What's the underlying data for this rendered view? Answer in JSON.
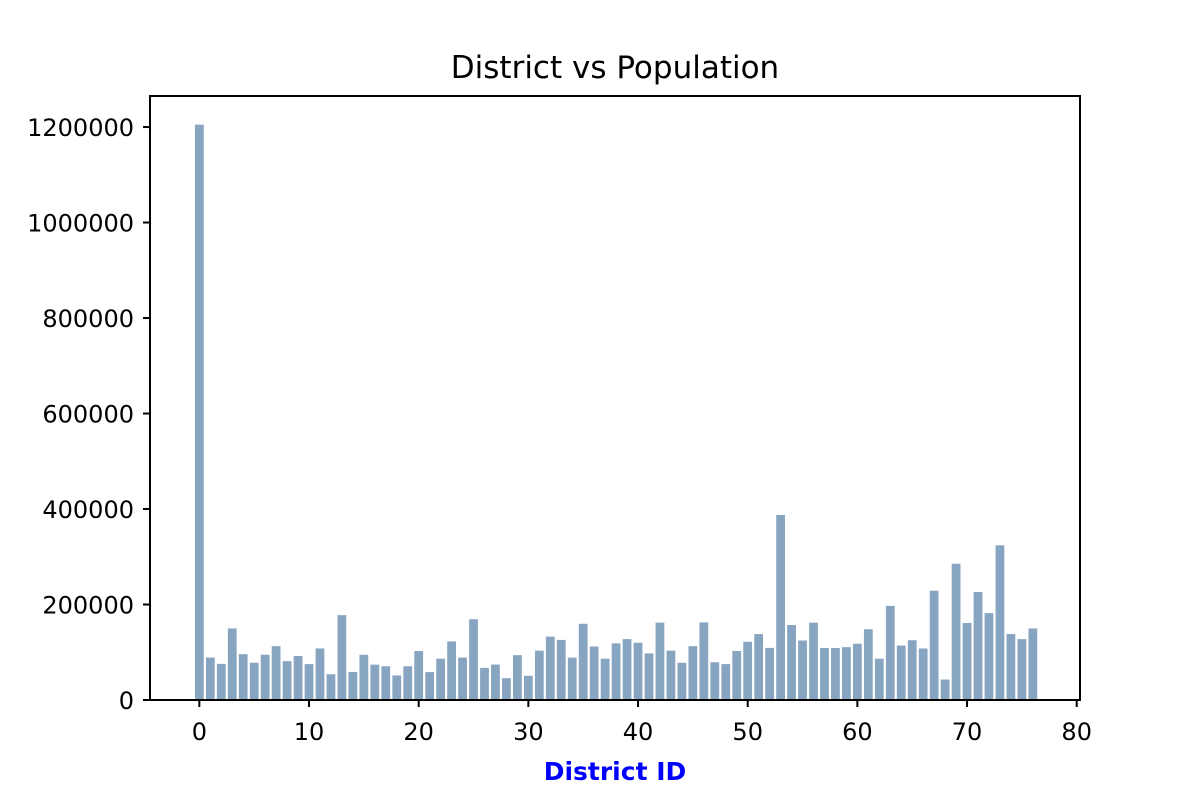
{
  "chart_data": {
    "type": "bar",
    "title": "District vs Population",
    "xlabel": "District ID",
    "ylabel": "",
    "xlim": [
      -4.5,
      80.3
    ],
    "ylim": [
      0,
      1265000
    ],
    "x_ticks": [
      0,
      10,
      20,
      30,
      40,
      50,
      60,
      70,
      80
    ],
    "y_ticks": [
      0,
      200000,
      400000,
      600000,
      800000,
      1000000,
      1200000
    ],
    "grid": false,
    "colors": {
      "bar": "#87a4c1",
      "xlabel": "#0000ff",
      "axis": "#000000"
    },
    "x": [
      0,
      1,
      2,
      3,
      4,
      5,
      6,
      7,
      8,
      9,
      10,
      11,
      12,
      13,
      14,
      15,
      16,
      17,
      18,
      19,
      20,
      21,
      22,
      23,
      24,
      25,
      26,
      27,
      28,
      29,
      30,
      31,
      32,
      33,
      34,
      35,
      36,
      37,
      38,
      39,
      40,
      41,
      42,
      43,
      44,
      45,
      46,
      47,
      48,
      49,
      50,
      51,
      52,
      53,
      54,
      55,
      56,
      57,
      58,
      59,
      60,
      61,
      62,
      63,
      64,
      65,
      66,
      67,
      68,
      69,
      70,
      71,
      72,
      73,
      74,
      75,
      76
    ],
    "values": [
      1204953,
      88884,
      75637,
      149893,
      95907,
      77963,
      94812,
      112709,
      81344,
      92084,
      75232,
      107870,
      53921,
      177686,
      58796,
      94725,
      74062,
      70646,
      51428,
      70699,
      102609,
      58400,
      86513,
      122603,
      88768,
      169129,
      67298,
      74221,
      45714,
      93931,
      50712,
      103347,
      132696,
      125832,
      88768,
      159617,
      112065,
      86513,
      118650,
      127519,
      119895,
      97610,
      161954,
      103347,
      77917,
      112709,
      162580,
      79000,
      75232,
      102609,
      121947,
      138032,
      109164,
      387570,
      157042,
      124605,
      161954,
      108871,
      108871,
      110643,
      117897,
      148145,
      86513,
      197099,
      114006,
      125236,
      107870,
      228848,
      42821,
      285387,
      161227,
      226122,
      182027,
      323870,
      138032,
      127519,
      149893
    ]
  }
}
